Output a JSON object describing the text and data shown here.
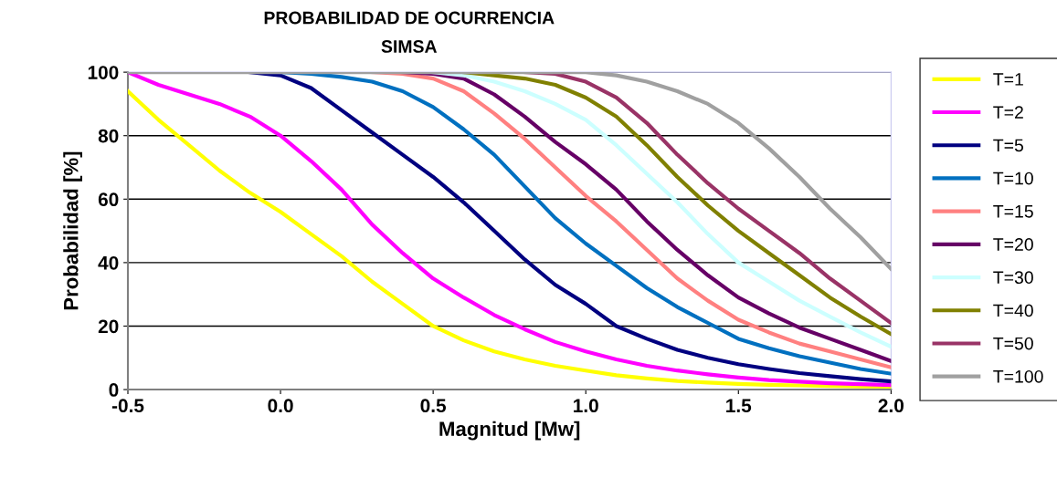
{
  "chart_data": {
    "type": "line",
    "title": "PROBABILIDAD DE OCURRENCIA",
    "subtitle": "SIMSA",
    "xlabel": "Magnitud [Mw]",
    "ylabel": "Probabilidad [%]",
    "x": [
      -0.5,
      -0.4,
      -0.3,
      -0.2,
      -0.1,
      0.0,
      0.1,
      0.2,
      0.3,
      0.4,
      0.5,
      0.6,
      0.7,
      0.8,
      0.9,
      1.0,
      1.1,
      1.2,
      1.3,
      1.4,
      1.5,
      1.6,
      1.7,
      1.8,
      1.9,
      2.0
    ],
    "xlim": [
      -0.5,
      2.0
    ],
    "xticks": [
      -0.5,
      {
        "value": 0,
        "label": "0.0"
      },
      0.5,
      {
        "value": 1,
        "label": "1.0"
      },
      1.5,
      {
        "value": 2,
        "label": "2.0"
      }
    ],
    "ylim": [
      0,
      100
    ],
    "yticks": [
      0,
      20,
      40,
      60,
      80,
      100
    ],
    "grid": "y",
    "legend": "right",
    "marker": "none",
    "line_style": "solid",
    "series": [
      {
        "name": "T=1",
        "color": "#ffff00",
        "values": [
          94,
          85,
          77,
          69,
          62,
          56,
          49,
          42,
          34,
          27,
          20,
          15.5,
          12,
          9.5,
          7.5,
          6,
          4.5,
          3.5,
          2.7,
          2.2,
          1.8,
          1.5,
          1.3,
          1.1,
          1,
          0.9
        ]
      },
      {
        "name": "T=2",
        "color": "#ff00ff",
        "values": [
          100,
          96,
          93,
          90,
          86,
          80,
          72,
          63,
          52,
          43,
          35,
          29,
          23.5,
          19,
          15,
          12,
          9.5,
          7.5,
          6,
          4.8,
          3.8,
          3,
          2.5,
          2,
          1.7,
          1.4
        ]
      },
      {
        "name": "T=5",
        "color": "#000080",
        "values": [
          null,
          null,
          null,
          null,
          100,
          99,
          95,
          88,
          81,
          74,
          67,
          59,
          50,
          41,
          33,
          27,
          20,
          16,
          12.5,
          10,
          8,
          6.5,
          5.2,
          4.2,
          3.3,
          2.6
        ]
      },
      {
        "name": "T=10",
        "color": "#0070c0",
        "values": [
          null,
          null,
          null,
          null,
          null,
          100,
          99.5,
          98.5,
          97,
          94,
          89,
          82,
          74,
          64,
          54,
          46,
          39,
          32,
          26,
          21,
          16,
          13,
          10.5,
          8.5,
          6.5,
          5
        ]
      },
      {
        "name": "T=15",
        "color": "#ff8080",
        "values": [
          null,
          null,
          null,
          null,
          null,
          null,
          null,
          null,
          100,
          99.5,
          98,
          94,
          87,
          79,
          70,
          61,
          53,
          44,
          35,
          28,
          22,
          18,
          14.5,
          12,
          9.5,
          7
        ]
      },
      {
        "name": "T=20",
        "color": "#660066",
        "values": [
          null,
          null,
          null,
          null,
          null,
          null,
          null,
          null,
          null,
          100,
          99.5,
          98,
          93,
          86,
          78,
          71,
          63,
          53,
          44,
          36,
          29,
          24,
          19.5,
          16,
          12.5,
          9
        ]
      },
      {
        "name": "T=30",
        "color": "#ccffff",
        "values": [
          null,
          null,
          null,
          null,
          null,
          null,
          null,
          null,
          null,
          null,
          100,
          99,
          97,
          94,
          90,
          85,
          77,
          68,
          59,
          49,
          40,
          34,
          28,
          23,
          18,
          13.5
        ]
      },
      {
        "name": "T=40",
        "color": "#808000",
        "values": [
          null,
          null,
          null,
          null,
          null,
          null,
          null,
          null,
          null,
          null,
          null,
          100,
          99,
          98,
          96,
          92,
          86,
          77,
          67,
          58,
          50,
          43,
          36,
          29,
          23,
          17.5
        ]
      },
      {
        "name": "T=50",
        "color": "#993366",
        "values": [
          null,
          null,
          null,
          null,
          null,
          null,
          null,
          null,
          null,
          null,
          null,
          null,
          null,
          100,
          99.5,
          97,
          92,
          84,
          74,
          65,
          57,
          50,
          43,
          35,
          28,
          21
        ]
      },
      {
        "name": "T=100",
        "color": "#a0a0a0",
        "values": [
          100,
          100,
          100,
          100,
          100,
          100,
          100,
          100,
          100,
          100,
          100,
          100,
          100,
          100,
          100,
          100,
          99,
          97,
          94,
          90,
          84,
          76,
          67,
          57,
          48,
          38
        ]
      }
    ]
  }
}
